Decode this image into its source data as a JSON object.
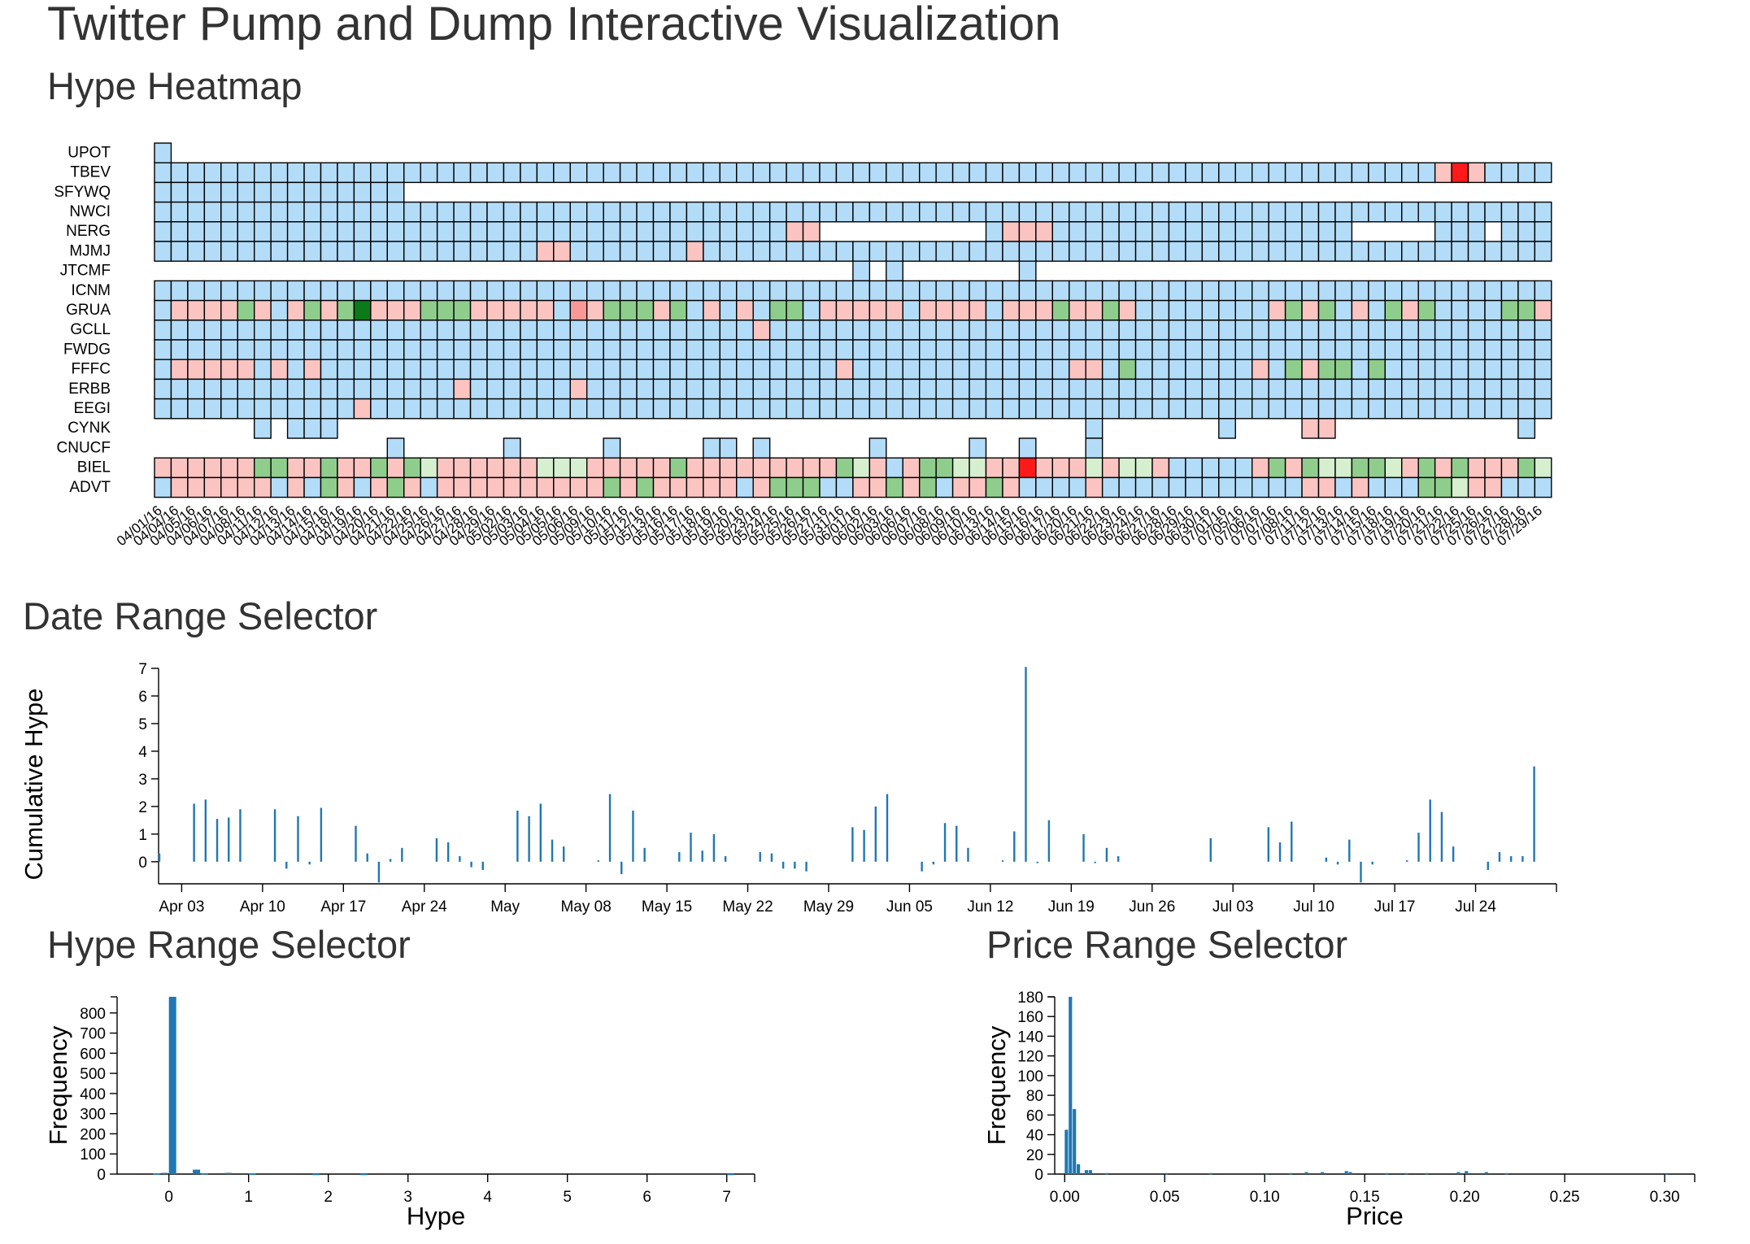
{
  "page": {
    "title": "Twitter Pump and Dump Interactive Visualization",
    "heatmap_title": "Hype Heatmap",
    "date_selector_title": "Date Range Selector",
    "hype_selector_title": "Hype Range Selector",
    "price_selector_title": "Price Range Selector"
  },
  "colors": {
    "neutral": "#b3dcf8",
    "pink_light": "#fde0de",
    "pink": "#fbc4c1",
    "pink_mid": "#f99895",
    "red": "#ff1a1a",
    "green_light": "#d5efcf",
    "green": "#8fcd8d",
    "green_dark": "#0b7a1a",
    "bar": "#1f77b4",
    "cell_stroke": "#000000"
  },
  "chart_data": [
    {
      "type": "heatmap",
      "title": "Hype Heatmap",
      "rows": [
        "UPOT",
        "TBEV",
        "SFYWQ",
        "NWCI",
        "NERG",
        "MJMJ",
        "JTCMF",
        "ICNM",
        "GRUA",
        "GCLL",
        "FWDG",
        "FFFC",
        "ERBB",
        "EEGI",
        "CYNK",
        "CNUCF",
        "BIEL",
        "ADVT"
      ],
      "columns": [
        "04/01/16",
        "04/04/16",
        "04/05/16",
        "04/06/16",
        "04/07/16",
        "04/08/16",
        "04/11/16",
        "04/12/16",
        "04/13/16",
        "04/14/16",
        "04/15/16",
        "04/18/16",
        "04/19/16",
        "04/20/16",
        "04/21/16",
        "04/22/16",
        "04/25/16",
        "04/26/16",
        "04/27/16",
        "04/28/16",
        "04/29/16",
        "05/02/16",
        "05/03/16",
        "05/04/16",
        "05/05/16",
        "05/06/16",
        "05/09/16",
        "05/10/16",
        "05/11/16",
        "05/12/16",
        "05/13/16",
        "05/16/16",
        "05/17/16",
        "05/18/16",
        "05/19/16",
        "05/20/16",
        "05/23/16",
        "05/24/16",
        "05/25/16",
        "05/26/16",
        "05/27/16",
        "05/31/16",
        "06/01/16",
        "06/02/16",
        "06/03/16",
        "06/06/16",
        "06/07/16",
        "06/08/16",
        "06/09/16",
        "06/10/16",
        "06/13/16",
        "06/14/16",
        "06/15/16",
        "06/16/16",
        "06/17/16",
        "06/20/16",
        "06/21/16",
        "06/22/16",
        "06/23/16",
        "06/24/16",
        "06/27/16",
        "06/28/16",
        "06/29/16",
        "06/30/16",
        "07/01/16",
        "07/05/16",
        "07/06/16",
        "07/07/16",
        "07/08/16",
        "07/11/16",
        "07/12/16",
        "07/13/16",
        "07/14/16",
        "07/15/16",
        "07/18/16",
        "07/19/16",
        "07/20/16",
        "07/21/16",
        "07/22/16",
        "07/25/16",
        "07/26/16",
        "07/27/16",
        "07/28/16",
        "07/29/16"
      ],
      "legend": "#colors",
      "cells": {
        "UPOT": "b",
        "TBEV": "bbbbbbbbbbbbbbbbbbbbbbbbbbbbbbbbbbbbbbbbbbbbbbbbbbbbbbbbbbbbbbbbbbbbbbbbbbbbbpRpbbbbbbb",
        "SFYWQ": "bbbbbbbbbbbbbbb",
        "NWCI": "bbbbbbbbbbbbbbbbbbbbbbbbbbbbbbbbbbbbbbbbbbbbbbbbbbbbbbbbbbbbbbbbbbbbbbbbbbbbbbbbbbbbbbb",
        "NERG": "bbbbbbbbbbbbbbbbbbbbbbbbbbbbbbbbbbbbbbpp..........bpppbbbbbbbbbbbbbbbbbb.....bbb.bbb...bbb.bb",
        "MJMJ": "bbbbbbbbbbbbbbbbbbbbbbbppbbbbbbbpbbbbbbbbbbbbbbbbbbbbbbbbbbbbbbbbbbbbbbbbbbbbbbbbbbbbbbb",
        "JTCMF": "..........................................b.b.......b.................................b..............bbbbbbbb",
        "ICNM": "bbbbbbbbbbbbbbbbbbbbbbbbbbbbbbbbbbbbbbbbbbbbbbbbbbbbbbbbbbbbbbbbbbbbbbbbbbbbbbbbbbbbbbb",
        "GRUA": "bppppgpbpgpgGpppgggpppppbqpgggpgbpbpbggbpppppbppppbpppgppgpbbbbbbbbpgpgbpbgpgbbbbggpbbbbb",
        "GCLL": "bbbbbbbbbbbbbbbbbbbbbbbbbbbbbbbbbbbbpbbbbbbbbbbbbbbbbbbbbbbbbbbbbbbbbbbbbbbbbbbbbbbbbbbb",
        "FWDG": "bbbbbbbbbbbbbbbbbbbbbbbbbbbbbbbbbbbbbbbbbbbbbbbbbbbbbbbbbbbbbbbbbbbbbbbbbbbbbbbbbbbbbbb",
        "FFFC": "bpppppbpbpbbbbbbbbbbbbbbbbbbbbbbbbbbbbbbbpbbbbbbbbbbbbbppbgbbbbbbbpbgpggbgbbbbbbbbbbbbbbb",
        "ERBB": "bbbbbbbbbbbbbbbbbbpbbbbbbpbbbbbbbbbbbbbbbbbbbbbbbbbbbbbbbbbbbbbbbbbbbbbbbbbbbbbbbbbbbbb",
        "EEGI": "bbbbbbbbbbbbpbbbbbbbbbbbbbbbbbbbbbbbbbbbbbbbbbbbbbbbbbbbbbbbbbbbbbbbbbbbbbbbbbbbbbbbbbb",
        "CYNK": "......b.bbb.............................................b.......b....pp...........b..b........",
        "CNUCF": "..............b......b.....b.....bb.b......b.....b..b...b..................................",
        "BIEL": "ppppppggppgppgpglpppppplllpppppgpppppppppglpbpggllppRppplpllpbbbbbpgpgllgglpgpgpppglqq",
        "ADVT": "bppppppbpbgpbpgpbppppppppppgpgpppppbpgggbbppgpgbppgpbbbbpbbbbbbbbbbbbppbpbbbgglppbbbbbbbbbb"
      }
    },
    {
      "type": "bar",
      "title": "Date Range Selector",
      "xlabel": "",
      "ylabel": "Cumulative Hype",
      "ylim": [
        -0.8,
        7
      ],
      "x_ticks": [
        "Apr 03",
        "Apr 10",
        "Apr 17",
        "Apr 24",
        "May",
        "May 08",
        "May 15",
        "May 22",
        "May 29",
        "Jun 05",
        "Jun 12",
        "Jun 19",
        "Jun 26",
        "Jul 03",
        "Jul 10",
        "Jul 17",
        "Jul 24"
      ],
      "x_tick_dates": [
        "2016-04-03",
        "2016-04-10",
        "2016-04-17",
        "2016-04-24",
        "2016-05-01",
        "2016-05-08",
        "2016-05-15",
        "2016-05-22",
        "2016-05-29",
        "2016-06-05",
        "2016-06-12",
        "2016-06-19",
        "2016-06-26",
        "2016-07-03",
        "2016-07-10",
        "2016-07-17",
        "2016-07-24"
      ],
      "y_ticks": [
        0,
        1,
        2,
        3,
        4,
        5,
        6,
        7
      ],
      "x_domain": [
        "2016-04-01",
        "2016-07-31"
      ],
      "x": [
        "2016-04-01",
        "2016-04-04",
        "2016-04-05",
        "2016-04-06",
        "2016-04-07",
        "2016-04-08",
        "2016-04-11",
        "2016-04-12",
        "2016-04-13",
        "2016-04-14",
        "2016-04-15",
        "2016-04-18",
        "2016-04-19",
        "2016-04-20",
        "2016-04-21",
        "2016-04-22",
        "2016-04-25",
        "2016-04-26",
        "2016-04-27",
        "2016-04-28",
        "2016-04-29",
        "2016-05-02",
        "2016-05-03",
        "2016-05-04",
        "2016-05-05",
        "2016-05-06",
        "2016-05-09",
        "2016-05-10",
        "2016-05-11",
        "2016-05-12",
        "2016-05-13",
        "2016-05-16",
        "2016-05-17",
        "2016-05-18",
        "2016-05-19",
        "2016-05-20",
        "2016-05-23",
        "2016-05-24",
        "2016-05-25",
        "2016-05-26",
        "2016-05-27",
        "2016-05-31",
        "2016-06-01",
        "2016-06-02",
        "2016-06-03",
        "2016-06-06",
        "2016-06-07",
        "2016-06-08",
        "2016-06-09",
        "2016-06-10",
        "2016-06-13",
        "2016-06-14",
        "2016-06-15",
        "2016-06-16",
        "2016-06-17",
        "2016-06-20",
        "2016-06-21",
        "2016-06-22",
        "2016-06-23",
        "2016-06-24",
        "2016-06-27",
        "2016-06-28",
        "2016-06-29",
        "2016-06-30",
        "2016-07-01",
        "2016-07-05",
        "2016-07-06",
        "2016-07-07",
        "2016-07-08",
        "2016-07-11",
        "2016-07-12",
        "2016-07-13",
        "2016-07-14",
        "2016-07-15",
        "2016-07-18",
        "2016-07-19",
        "2016-07-20",
        "2016-07-21",
        "2016-07-22",
        "2016-07-25",
        "2016-07-26",
        "2016-07-27",
        "2016-07-28",
        "2016-07-29"
      ],
      "values": [
        0.3,
        2.1,
        2.25,
        1.55,
        1.6,
        1.9,
        1.9,
        -0.25,
        1.65,
        -0.1,
        1.95,
        1.3,
        0.3,
        -0.75,
        0.1,
        0.5,
        0.85,
        0.7,
        0.2,
        -0.2,
        -0.3,
        1.85,
        1.65,
        2.1,
        0.8,
        0.55,
        0.05,
        2.45,
        -0.45,
        1.85,
        0.5,
        0.35,
        1.05,
        0.4,
        1.0,
        0.2,
        0.35,
        0.3,
        -0.25,
        -0.25,
        -0.35,
        1.25,
        1.15,
        2.0,
        2.45,
        -0.35,
        -0.1,
        1.4,
        1.3,
        0.5,
        0.05,
        1.1,
        7.05,
        -0.05,
        1.5,
        1.0,
        -0.05,
        0.5,
        0.2,
        0.0,
        0.0,
        0.0,
        0.0,
        0.0,
        0.85,
        0.0,
        1.25,
        0.7,
        1.45,
        0.15,
        -0.1,
        0.8,
        -0.75,
        -0.1,
        0.05,
        1.05,
        2.25,
        1.8,
        0.55,
        -0.3,
        0.35,
        0.2,
        0.2,
        3.45
      ]
    },
    {
      "type": "bar",
      "title": "Hype Range Selector",
      "xlabel": "Hype",
      "ylabel": "Frequency",
      "xlim": [
        -0.65,
        7.35
      ],
      "ylim": [
        0,
        880
      ],
      "x_ticks": [
        0,
        1,
        2,
        3,
        4,
        5,
        6,
        7
      ],
      "y_ticks": [
        0,
        100,
        200,
        300,
        400,
        500,
        600,
        700,
        800
      ],
      "bin_width": 0.1,
      "bins": [
        {
          "x": -0.2,
          "value": 3
        },
        {
          "x": -0.1,
          "value": 6
        },
        {
          "x": 0.0,
          "value": 880
        },
        {
          "x": 0.3,
          "value": 22
        },
        {
          "x": 0.4,
          "value": 4
        },
        {
          "x": 0.7,
          "value": 6
        },
        {
          "x": 1.0,
          "value": 2
        },
        {
          "x": 1.8,
          "value": 1
        },
        {
          "x": 2.4,
          "value": 1
        },
        {
          "x": 7.0,
          "value": 1
        }
      ]
    },
    {
      "type": "bar",
      "title": "Price Range Selector",
      "xlabel": "Price",
      "ylabel": "Frequency",
      "xlim": [
        -0.005,
        0.315
      ],
      "ylim": [
        0,
        180
      ],
      "x_ticks": [
        "0.00",
        "0.05",
        "0.10",
        "0.15",
        "0.20",
        "0.25",
        "0.30"
      ],
      "x_tick_values": [
        0,
        0.05,
        0.1,
        0.15,
        0.2,
        0.25,
        0.3
      ],
      "y_ticks": [
        0,
        20,
        40,
        60,
        80,
        100,
        120,
        140,
        160,
        180
      ],
      "bin_width": 0.002,
      "bins": [
        {
          "x": 0.0,
          "value": 45
        },
        {
          "x": 0.002,
          "value": 180
        },
        {
          "x": 0.004,
          "value": 66
        },
        {
          "x": 0.006,
          "value": 10
        },
        {
          "x": 0.01,
          "value": 4
        },
        {
          "x": 0.012,
          "value": 4
        },
        {
          "x": 0.02,
          "value": 1
        },
        {
          "x": 0.05,
          "value": 1
        },
        {
          "x": 0.072,
          "value": 1
        },
        {
          "x": 0.1,
          "value": 1
        },
        {
          "x": 0.112,
          "value": 1
        },
        {
          "x": 0.12,
          "value": 2
        },
        {
          "x": 0.128,
          "value": 2
        },
        {
          "x": 0.14,
          "value": 3
        },
        {
          "x": 0.142,
          "value": 2
        },
        {
          "x": 0.16,
          "value": 1
        },
        {
          "x": 0.17,
          "value": 1
        },
        {
          "x": 0.18,
          "value": 1
        },
        {
          "x": 0.196,
          "value": 2
        },
        {
          "x": 0.2,
          "value": 3
        },
        {
          "x": 0.21,
          "value": 2
        },
        {
          "x": 0.22,
          "value": 1
        },
        {
          "x": 0.3,
          "value": 1
        }
      ]
    }
  ]
}
